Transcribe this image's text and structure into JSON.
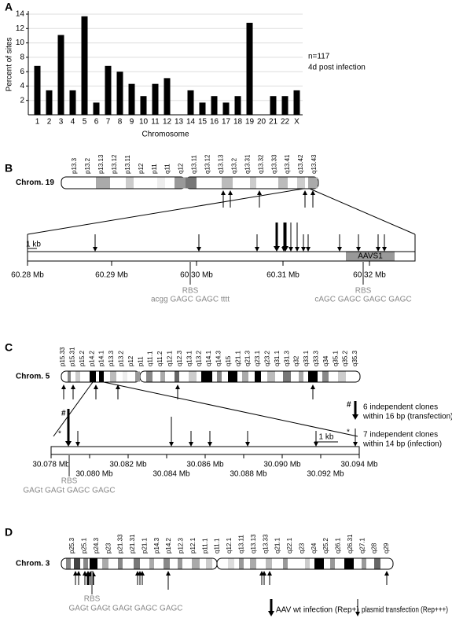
{
  "panel_labels": [
    "A",
    "B",
    "C",
    "D"
  ],
  "chart_data": {
    "type": "bar",
    "y_label": "Percent of sites",
    "x_label": "Chromosome",
    "categories": [
      "1",
      "2",
      "3",
      "4",
      "5",
      "6",
      "7",
      "8",
      "9",
      "10",
      "11",
      "12",
      "13",
      "14",
      "15",
      "16",
      "17",
      "18",
      "19",
      "20",
      "21",
      "22",
      "X"
    ],
    "values": [
      6.8,
      3.4,
      11.1,
      3.4,
      13.7,
      1.7,
      6.8,
      6.0,
      4.3,
      2.6,
      4.3,
      5.1,
      0,
      3.4,
      1.7,
      2.6,
      1.7,
      2.6,
      12.8,
      0,
      2.6,
      2.6,
      3.4
    ],
    "color": "#000000",
    "ylim": [
      0,
      14
    ],
    "yticks": [
      2,
      4,
      6,
      8,
      10,
      12,
      14
    ],
    "grid": true,
    "annotations": [
      "n=117",
      "4d post infection"
    ]
  },
  "panel_b": {
    "chromosome": "Chrom. 19",
    "bands": [
      "p13.3",
      "p13.2",
      "p13.13",
      "p13.12",
      "p13.11",
      "p12",
      "p11",
      "q11",
      "q12",
      "q13.11",
      "q13.12",
      "q13.13",
      "q13.2",
      "q13.31",
      "q13.32",
      "q13.33",
      "q13.41",
      "q13.42",
      "q13.43"
    ],
    "scale": "1 kb",
    "region": "AAVS1",
    "positions": [
      "60.28 Mb",
      "60.29 Mb",
      "60.30 Mb",
      "60.31 Mb",
      "60.32 Mb"
    ],
    "rbs": [
      {
        "label": "RBS",
        "sequence": "acgg GAGC GAGC tttt"
      },
      {
        "label": "RBS",
        "sequence": "cAGC GAGC GAGC GAGC"
      }
    ]
  },
  "panel_c": {
    "chromosome": "Chrom. 5",
    "bands": [
      "p15.33",
      "p15.31",
      "p15.2",
      "p14.2",
      "p14.1",
      "p13.3",
      "p13.2",
      "p12",
      "p11",
      "q11.1",
      "q11.2",
      "q12.1",
      "q12.3",
      "q13.1",
      "q13.2",
      "q14.1",
      "q14.3",
      "q15",
      "q21.1",
      "q21.3",
      "q23.1",
      "q23.2",
      "q31.1",
      "q31.3",
      "q32",
      "q33.1",
      "q33.3",
      "q34",
      "q35.1",
      "q35.2",
      "q35.3"
    ],
    "scale": "1 kb",
    "positions": [
      "30.078 Mb",
      "30.080 Mb",
      "30.082 Mb",
      "30.084 Mb",
      "30.086 Mb",
      "30.088 Mb",
      "30.090 Mb",
      "30.092 Mb",
      "30.094 Mb"
    ],
    "rbs": {
      "label": "RBS",
      "sequence": "GAGt GAGt GAGC GAGC"
    },
    "markers": [
      "#",
      "*"
    ],
    "legend": [
      {
        "symbol": "#",
        "lines": [
          "6 independent clones",
          "within 16 bp (transfection)"
        ]
      },
      {
        "symbol": "*",
        "lines": [
          "7 independent clones",
          "within 14 bp (infection)"
        ]
      }
    ]
  },
  "panel_d": {
    "chromosome": "Chrom. 3",
    "bands": [
      "p25.3",
      "p25.1",
      "p24.3",
      "p23",
      "p21.33",
      "p21.31",
      "p21.1",
      "p14.3",
      "p14.2",
      "p12.3",
      "p12.1",
      "p11.1",
      "q11.1",
      "q12.1",
      "q13.11",
      "q13.13",
      "q13.33",
      "q21.1",
      "q22.1",
      "q23",
      "q24",
      "q25.2",
      "q26.1",
      "q26.31",
      "q27.1",
      "q28",
      "q29"
    ],
    "rbs": {
      "label": "RBS",
      "sequence": "GAGt GAGt GAGt GAGC GAGC"
    },
    "legend": [
      "AAV wt infection (Rep+)",
      "plasmid transfection (Rep+++)"
    ]
  }
}
